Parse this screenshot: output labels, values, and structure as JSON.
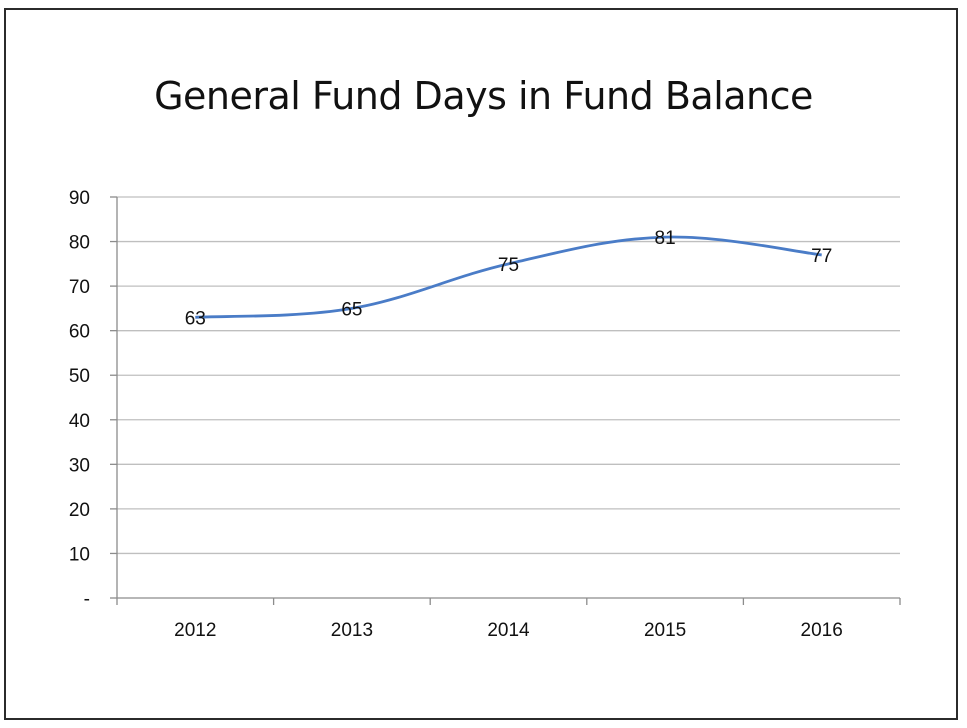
{
  "chart_data": {
    "type": "line",
    "title": "General Fund Days in Fund Balance",
    "categories": [
      "2012",
      "2013",
      "2014",
      "2015",
      "2016"
    ],
    "series": [
      {
        "values": [
          63,
          65,
          75,
          81,
          77
        ],
        "color": "#4a7cc7"
      }
    ],
    "data_labels": [
      "63",
      "65",
      "75",
      "81",
      "77"
    ],
    "ylim": [
      0,
      90
    ],
    "yticks": [
      0,
      10,
      20,
      30,
      40,
      50,
      60,
      70,
      80,
      90
    ],
    "ytick_labels": [
      "-",
      "10",
      "20",
      "30",
      "40",
      "50",
      "60",
      "70",
      "80",
      "90"
    ],
    "grid": true,
    "gridline_color": "#bfbfbf",
    "axis_color": "#8c8c8c"
  }
}
